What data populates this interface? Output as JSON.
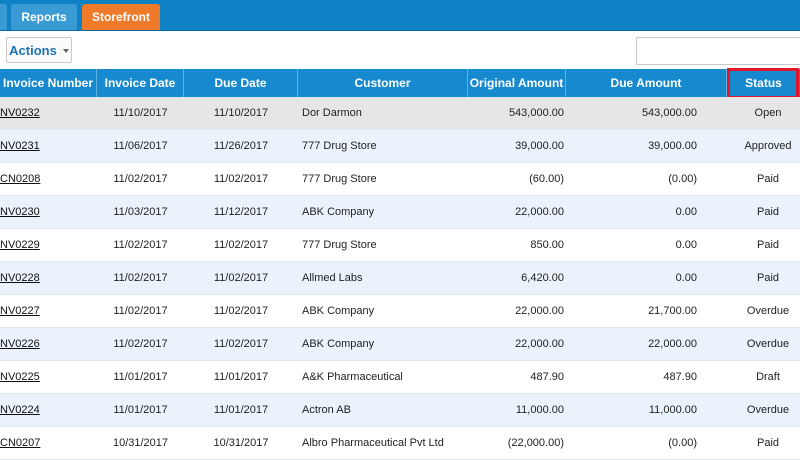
{
  "nav": {
    "tabs": [
      {
        "label": "Reports"
      },
      {
        "label": "Storefront"
      }
    ]
  },
  "toolbar": {
    "actions_label": "Actions",
    "search_value": ""
  },
  "table": {
    "columns": [
      "Invoice Number",
      "Invoice Date",
      "Due Date",
      "Customer",
      "Original Amount",
      "Due Amount",
      "Status"
    ],
    "rows": [
      {
        "number": "NV0232",
        "date": "11/10/2017",
        "due": "11/10/2017",
        "customer": "Dor Darmon",
        "original": "543,000.00",
        "amount_due": "543,000.00",
        "status": "Open"
      },
      {
        "number": "NV0231",
        "date": "11/06/2017",
        "due": "11/26/2017",
        "customer": "777 Drug Store",
        "original": "39,000.00",
        "amount_due": "39,000.00",
        "status": "Approved"
      },
      {
        "number": "CN0208",
        "date": "11/02/2017",
        "due": "11/02/2017",
        "customer": "777 Drug Store",
        "original": "(60.00)",
        "amount_due": "(0.00)",
        "status": "Paid"
      },
      {
        "number": "NV0230",
        "date": "11/03/2017",
        "due": "11/12/2017",
        "customer": "ABK Company",
        "original": "22,000.00",
        "amount_due": "0.00",
        "status": "Paid"
      },
      {
        "number": "NV0229",
        "date": "11/02/2017",
        "due": "11/02/2017",
        "customer": "777 Drug Store",
        "original": "850.00",
        "amount_due": "0.00",
        "status": "Paid"
      },
      {
        "number": "NV0228",
        "date": "11/02/2017",
        "due": "11/02/2017",
        "customer": "Allmed Labs",
        "original": "6,420.00",
        "amount_due": "0.00",
        "status": "Paid"
      },
      {
        "number": "NV0227",
        "date": "11/02/2017",
        "due": "11/02/2017",
        "customer": "ABK Company",
        "original": "22,000.00",
        "amount_due": "21,700.00",
        "status": "Overdue"
      },
      {
        "number": "NV0226",
        "date": "11/02/2017",
        "due": "11/02/2017",
        "customer": "ABK Company",
        "original": "22,000.00",
        "amount_due": "22,000.00",
        "status": "Overdue"
      },
      {
        "number": "NV0225",
        "date": "11/01/2017",
        "due": "11/01/2017",
        "customer": "A&K Pharmaceutical",
        "original": "487.90",
        "amount_due": "487.90",
        "status": "Draft"
      },
      {
        "number": "NV0224",
        "date": "11/01/2017",
        "due": "11/01/2017",
        "customer": "Actron AB",
        "original": "11,000.00",
        "amount_due": "11,000.00",
        "status": "Overdue"
      },
      {
        "number": "CN0207",
        "date": "10/31/2017",
        "due": "10/31/2017",
        "customer": "Albro Pharmaceutical Pvt Ltd",
        "original": "(22,000.00)",
        "amount_due": "(0.00)",
        "status": "Paid"
      }
    ]
  },
  "colors": {
    "nav_bar": "#0e82c4",
    "storefront_tab": "#ee7a2a",
    "header_bg": "#1789cf",
    "highlight": "#e0162b"
  }
}
